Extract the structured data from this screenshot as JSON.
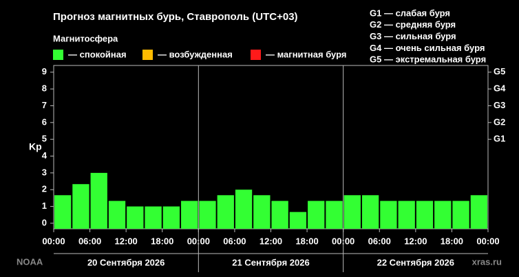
{
  "chart_data": {
    "type": "bar",
    "title": "Прогноз магнитных бурь, Ставрополь (UTC+03)",
    "subtitle": "Магнитосфера",
    "legend": [
      {
        "label": "— спокойная",
        "color": "#33ff33"
      },
      {
        "label": "— возбужденная",
        "color": "#ffbb00"
      },
      {
        "label": "— магнитная буря",
        "color": "#ff1a1a"
      }
    ],
    "storm_scale": [
      "G1 — слабая буря",
      "G2 — средняя буря",
      "G3 — сильная буря",
      "G4 — очень сильная буря",
      "G5 — экстремальная буря"
    ],
    "y_label": "Kp",
    "x": [
      0,
      3,
      6,
      9,
      12,
      15,
      18,
      21,
      24,
      27,
      30,
      33,
      36,
      39,
      42,
      45,
      48,
      51,
      54,
      57,
      60,
      63,
      66,
      69
    ],
    "values": [
      1.67,
      2.33,
      3,
      1.33,
      1,
      1,
      1,
      1.33,
      1.33,
      1.67,
      2,
      1.67,
      1.33,
      0.67,
      1.33,
      1.33,
      1.67,
      1.67,
      1.33,
      1.33,
      1.33,
      1.33,
      1.33,
      1.67
    ],
    "color": "#33ff33",
    "bar_hours": 3,
    "xlim": [
      0,
      72
    ],
    "xticks": [
      {
        "value": 0,
        "label": "00:00"
      },
      {
        "value": 6,
        "label": "06:00"
      },
      {
        "value": 12,
        "label": "12:00"
      },
      {
        "value": 18,
        "label": "18:00"
      },
      {
        "value": 24,
        "label": "00:00"
      },
      {
        "value": 30,
        "label": "06:00"
      },
      {
        "value": 36,
        "label": "12:00"
      },
      {
        "value": 42,
        "label": "18:00"
      },
      {
        "value": 48,
        "label": "00:00"
      },
      {
        "value": 54,
        "label": "06:00"
      },
      {
        "value": 60,
        "label": "12:00"
      },
      {
        "value": 66,
        "label": "18:00"
      },
      {
        "value": 72,
        "label": "00:00"
      }
    ],
    "days": [
      "20 Сентября 2026",
      "21 Сентября 2026",
      "22 Сентября 2026"
    ],
    "ylim": [
      -0.33,
      9.4
    ],
    "yticks": [
      0,
      1,
      2,
      3,
      4,
      5,
      6,
      7,
      8,
      9
    ],
    "y2lim": [
      -0.33,
      9.4
    ],
    "y2ticks": [
      {
        "value": 5,
        "label": "G1"
      },
      {
        "value": 6,
        "label": "G2"
      },
      {
        "value": 7,
        "label": "G3"
      },
      {
        "value": 8,
        "label": "G4"
      },
      {
        "value": 9,
        "label": "G5"
      }
    ],
    "source": "NOAA",
    "site": "xras.ru"
  }
}
